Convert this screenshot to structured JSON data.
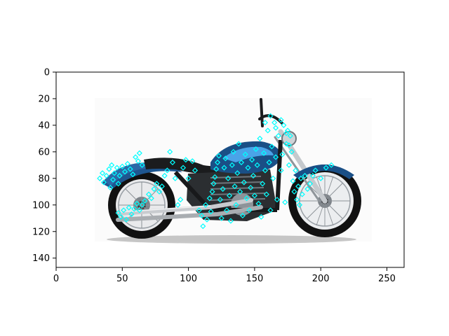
{
  "figure": {
    "background": "#ffffff",
    "image_subject": "motorcycle photo",
    "image_colors": {
      "body": "#1a4f86",
      "tank_highlight": "#4aa3e8",
      "tires": "#111111",
      "chrome": "#b9bcc0"
    },
    "marker_color": "#00ffff",
    "marker_shape": "open-diamond"
  },
  "chart_data": {
    "type": "scatter",
    "title": "",
    "xlabel": "",
    "ylabel": "",
    "xlim": [
      0,
      263
    ],
    "ylim": [
      147,
      0
    ],
    "y_inverted": true,
    "grid": false,
    "x_ticks": [
      "0",
      "50",
      "100",
      "150",
      "200",
      "250"
    ],
    "y_ticks": [
      "0",
      "20",
      "40",
      "60",
      "80",
      "100",
      "120",
      "140"
    ],
    "series": [
      {
        "marker": "diamond",
        "color": "#00ffff",
        "points": [
          [
            33,
            80
          ],
          [
            35,
            76
          ],
          [
            36,
            83
          ],
          [
            38,
            78
          ],
          [
            40,
            73
          ],
          [
            41,
            87
          ],
          [
            42,
            70
          ],
          [
            43,
            81
          ],
          [
            44,
            76
          ],
          [
            46,
            72
          ],
          [
            47,
            84
          ],
          [
            48,
            78
          ],
          [
            50,
            71
          ],
          [
            52,
            75
          ],
          [
            54,
            69
          ],
          [
            56,
            73
          ],
          [
            58,
            77
          ],
          [
            60,
            64
          ],
          [
            62,
            67
          ],
          [
            63,
            61
          ],
          [
            65,
            70
          ],
          [
            47,
            106
          ],
          [
            49,
            109
          ],
          [
            51,
            104
          ],
          [
            53,
            111
          ],
          [
            55,
            102
          ],
          [
            57,
            107
          ],
          [
            59,
            103
          ],
          [
            61,
            99
          ],
          [
            63,
            104
          ],
          [
            65,
            100
          ],
          [
            67,
            97
          ],
          [
            70,
            92
          ],
          [
            72,
            95
          ],
          [
            74,
            88
          ],
          [
            76,
            84
          ],
          [
            78,
            90
          ],
          [
            80,
            86
          ],
          [
            82,
            78
          ],
          [
            84,
            74
          ],
          [
            86,
            60
          ],
          [
            88,
            68
          ],
          [
            90,
            80
          ],
          [
            92,
            100
          ],
          [
            94,
            96
          ],
          [
            96,
            72
          ],
          [
            98,
            66
          ],
          [
            100,
            80
          ],
          [
            103,
            67
          ],
          [
            105,
            74
          ],
          [
            108,
            104
          ],
          [
            110,
            108
          ],
          [
            111,
            116
          ],
          [
            113,
            100
          ],
          [
            114,
            111
          ],
          [
            116,
            95
          ],
          [
            117,
            105
          ],
          [
            118,
            90
          ],
          [
            119,
            84
          ],
          [
            120,
            79
          ],
          [
            121,
            73
          ],
          [
            122,
            68
          ],
          [
            123,
            63
          ],
          [
            124,
            96
          ],
          [
            125,
            110
          ],
          [
            126,
            88
          ],
          [
            127,
            72
          ],
          [
            128,
            65
          ],
          [
            129,
            104
          ],
          [
            130,
            80
          ],
          [
            131,
            93
          ],
          [
            132,
            112
          ],
          [
            133,
            70
          ],
          [
            134,
            60
          ],
          [
            135,
            86
          ],
          [
            136,
            100
          ],
          [
            137,
            76
          ],
          [
            138,
            54
          ],
          [
            139,
            90
          ],
          [
            140,
            68
          ],
          [
            141,
            108
          ],
          [
            142,
            83
          ],
          [
            143,
            62
          ],
          [
            144,
            95
          ],
          [
            145,
            72
          ],
          [
            146,
            104
          ],
          [
            147,
            87
          ],
          [
            148,
            66
          ],
          [
            149,
            78
          ],
          [
            150,
            93
          ],
          [
            151,
            58
          ],
          [
            152,
            70
          ],
          [
            153,
            99
          ],
          [
            154,
            50
          ],
          [
            155,
            109
          ],
          [
            156,
            84
          ],
          [
            157,
            61
          ],
          [
            158,
            74
          ],
          [
            159,
            92
          ],
          [
            160,
            44
          ],
          [
            161,
            68
          ],
          [
            162,
            104
          ],
          [
            163,
            56
          ],
          [
            164,
            80
          ],
          [
            165,
            38
          ],
          [
            166,
            64
          ],
          [
            167,
            96
          ],
          [
            168,
            48
          ],
          [
            170,
            74
          ],
          [
            171,
            62
          ],
          [
            172,
            40
          ],
          [
            173,
            98
          ],
          [
            174,
            54
          ],
          [
            175,
            44
          ],
          [
            176,
            70
          ],
          [
            177,
            48
          ],
          [
            178,
            60
          ],
          [
            179,
            82
          ],
          [
            180,
            90
          ],
          [
            181,
            74
          ],
          [
            182,
            96
          ],
          [
            183,
            86
          ],
          [
            184,
            100
          ],
          [
            185,
            80
          ],
          [
            186,
            92
          ],
          [
            188,
            78
          ],
          [
            190,
            88
          ],
          [
            192,
            84
          ],
          [
            194,
            78
          ],
          [
            196,
            74
          ],
          [
            200,
            80
          ],
          [
            204,
            72
          ],
          [
            208,
            70
          ],
          [
            158,
            38
          ],
          [
            162,
            33
          ],
          [
            166,
            42
          ],
          [
            170,
            36
          ],
          [
            174,
            46
          ],
          [
            176,
            55
          ]
        ]
      }
    ]
  }
}
